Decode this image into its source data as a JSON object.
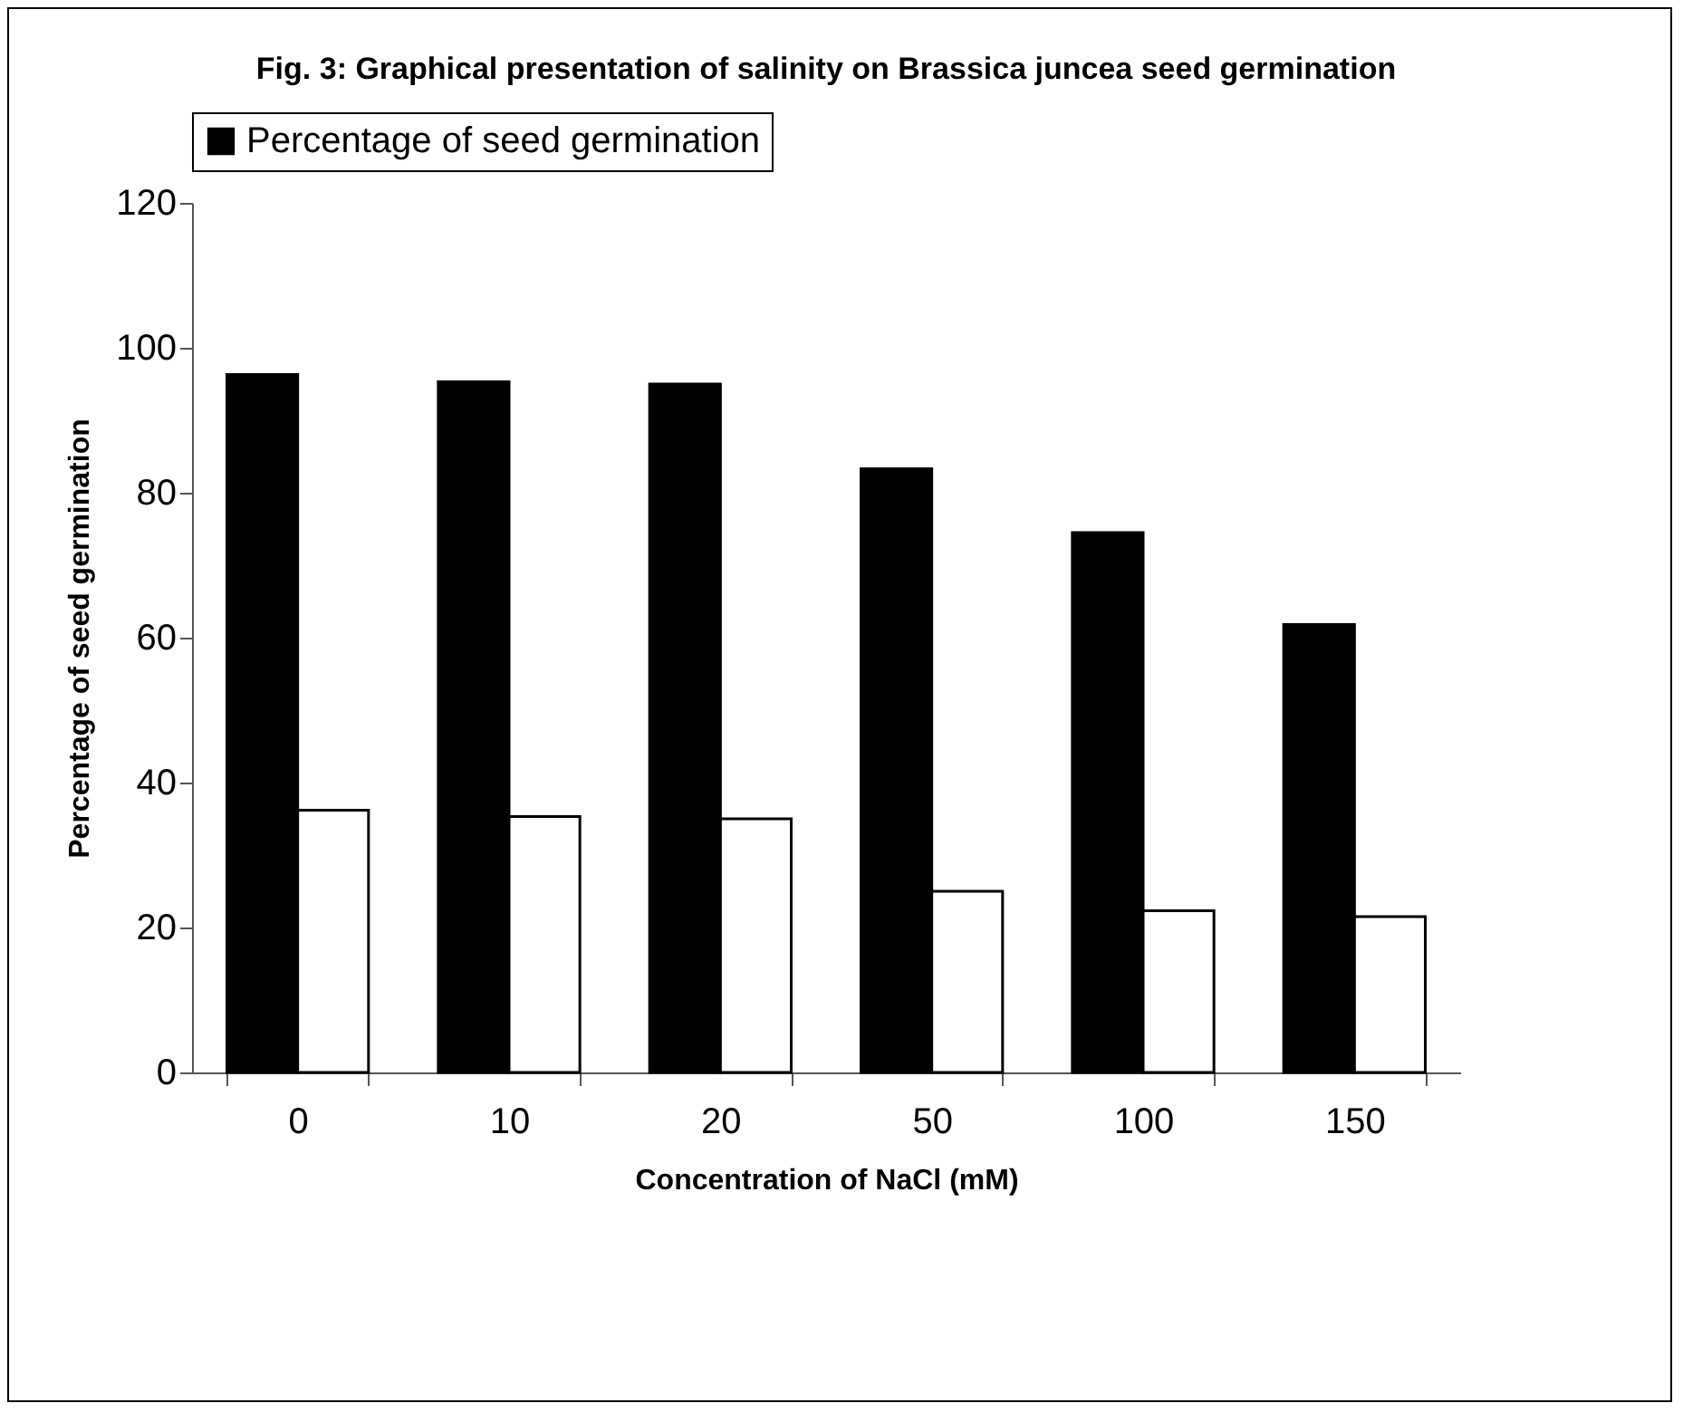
{
  "chart_data": {
    "type": "bar",
    "title": "Fig. 3: Graphical presentation of salinity on Brassica juncea seed germination",
    "xlabel": "Concentration of NaCl (mM)",
    "ylabel": "Percentage of seed germination",
    "categories": [
      "0",
      "10",
      "20",
      "50",
      "100",
      "150"
    ],
    "series": [
      {
        "name": "Percentage of seed germination",
        "color": "#000000",
        "values": [
          96.3,
          95.3,
          95,
          83.3,
          74.5,
          61.8
        ]
      },
      {
        "color": "#ffffff",
        "values": [
          36.2,
          35.3,
          35,
          25,
          22.3,
          21.5
        ]
      }
    ],
    "ylim": [
      0,
      120
    ],
    "yticks": [
      0,
      20,
      40,
      60,
      80,
      100,
      120
    ],
    "grid": false,
    "legend": "top"
  }
}
